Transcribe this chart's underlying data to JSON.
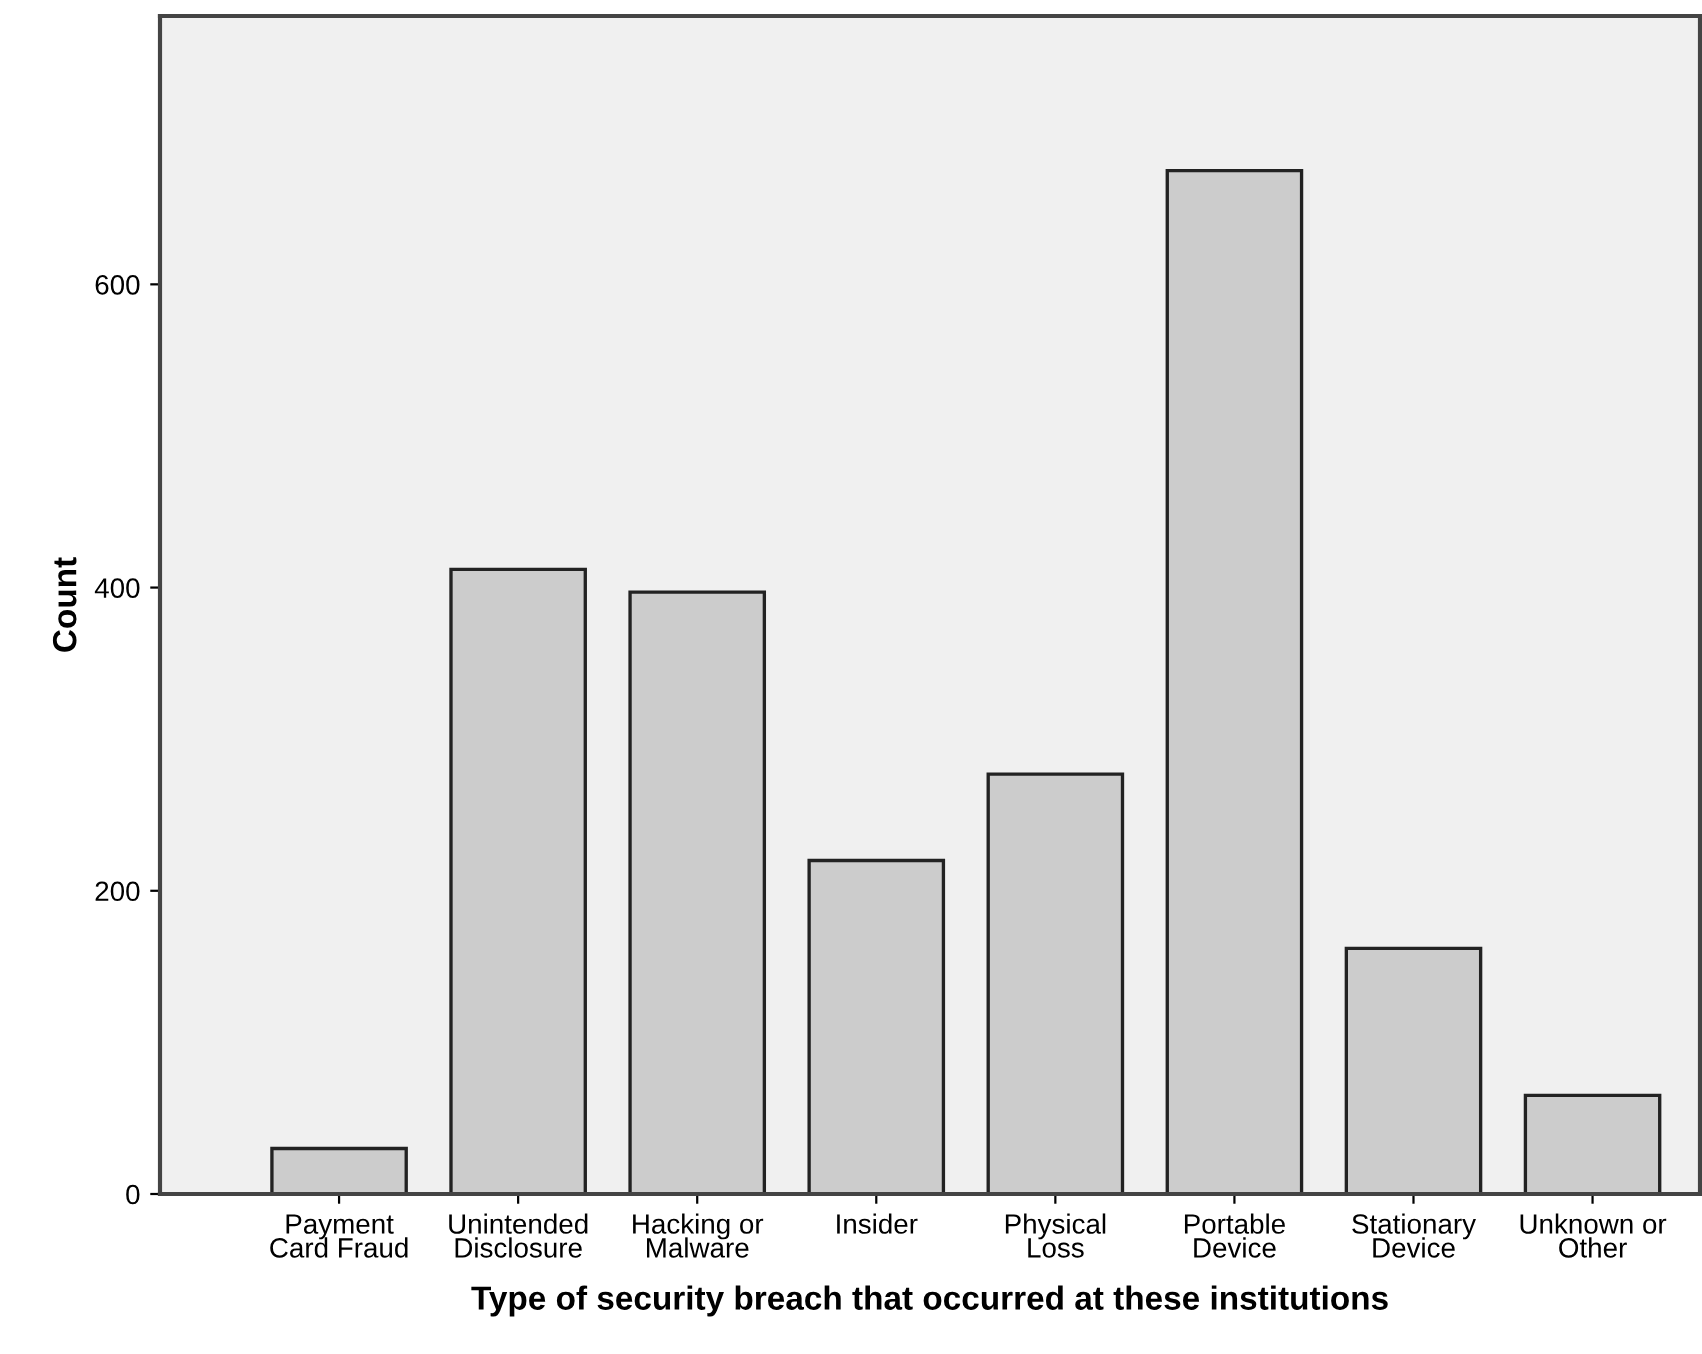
{
  "chart_data": {
    "type": "bar",
    "xlabel": "Type of security breach that occurred at these institutions",
    "ylabel": "Count",
    "categories": [
      "Payment\nCard Fraud",
      "Unintended\nDisclosure",
      "Hacking or\nMalware",
      "Insider",
      "Physical\nLoss",
      "Portable\nDevice",
      "Stationary\nDevice",
      "Unknown or\nOther"
    ],
    "values": [
      30,
      412,
      397,
      220,
      277,
      675,
      162,
      65
    ],
    "color": "#cccccc",
    "ylim": [
      0,
      777
    ],
    "yticks": [
      0,
      200,
      400,
      600
    ],
    "grid": false
  }
}
